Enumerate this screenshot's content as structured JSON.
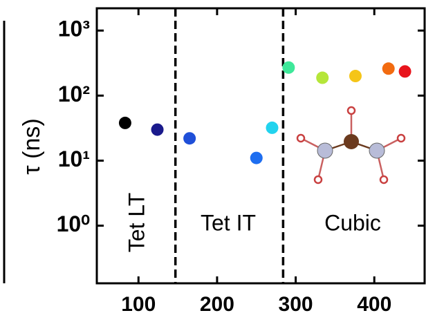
{
  "chart_data": {
    "type": "scatter",
    "ylabel": "τ (ns)",
    "x": [
      83,
      124,
      165,
      250,
      270,
      291,
      334,
      376,
      418,
      439
    ],
    "values": [
      38,
      30,
      22,
      11,
      32,
      270,
      188,
      200,
      260,
      235
    ],
    "colors": [
      "#000000",
      "#1a1a8c",
      "#1f4fd8",
      "#1e6ef0",
      "#22d3ee",
      "#3ee89a",
      "#b5e63a",
      "#f5c518",
      "#f26b10",
      "#e8141c"
    ],
    "xlim": [
      47,
      464
    ],
    "xticks": [
      100,
      200,
      300,
      400
    ],
    "ylim": [
      0.13,
      2200
    ],
    "log_y": true,
    "yticks": [
      {
        "value": 1,
        "label": "10⁰"
      },
      {
        "value": 10,
        "label": "10¹"
      },
      {
        "value": 100,
        "label": "10²"
      },
      {
        "value": 1000,
        "label": "10³"
      }
    ],
    "dividers": [
      147,
      284
    ],
    "regions": [
      "Tet LT",
      "Tet IT",
      "Cubic"
    ]
  }
}
